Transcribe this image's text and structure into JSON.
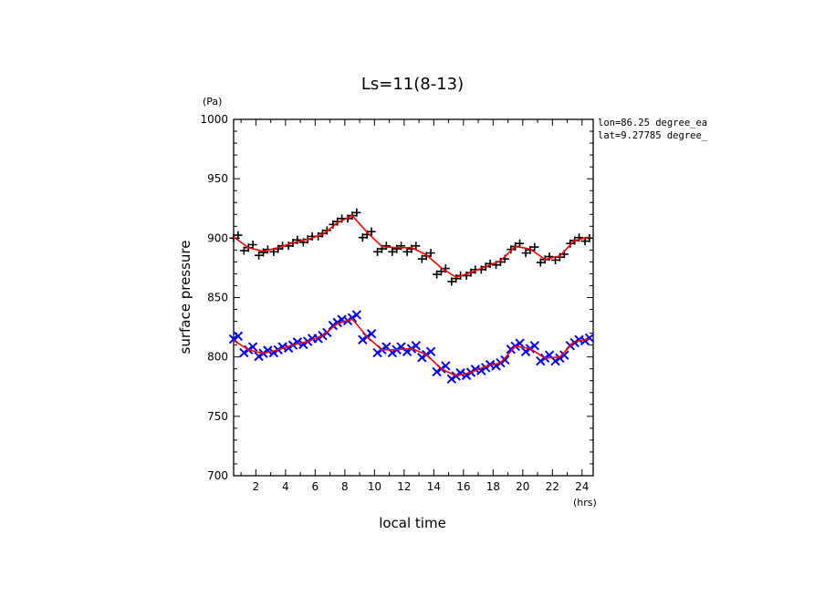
{
  "chart_data": {
    "type": "scatter",
    "title": "Ls=11(8-13)",
    "xlabel": "local time",
    "ylabel": "surface pressure",
    "x_unit": "(hrs)",
    "y_unit": "(Pa)",
    "xlim": [
      0.5,
      24.75
    ],
    "ylim": [
      700,
      1000
    ],
    "xticks": [
      2,
      4,
      6,
      8,
      10,
      12,
      14,
      16,
      18,
      20,
      22,
      24
    ],
    "yticks": [
      700,
      750,
      800,
      850,
      900,
      950,
      1000
    ],
    "annotations": [
      "lon=86.25 degree_ea",
      "lat=9.27785 degree_"
    ],
    "x": [
      0.5,
      1.5,
      2.5,
      3.5,
      4.5,
      5.5,
      6.5,
      7.5,
      8.5,
      9.5,
      10.5,
      11.5,
      12.5,
      13.5,
      14.5,
      15.5,
      16.5,
      17.5,
      18.5,
      19.5,
      20.5,
      21.5,
      22.5,
      23.5,
      24.5
    ],
    "series": [
      {
        "color": "#000000",
        "marker": "plus",
        "values": [
          900,
          892,
          888,
          891,
          896,
          899,
          904,
          914,
          919,
          903,
          891,
          891,
          891,
          885,
          872,
          866,
          871,
          876,
          880,
          893,
          890,
          882,
          884,
          898,
          900
        ],
        "fit": [
          901,
          892,
          889,
          892,
          896,
          899,
          903,
          913,
          919,
          905,
          893,
          892,
          892,
          886,
          875,
          867,
          871,
          876,
          881,
          893,
          891,
          882,
          885,
          898,
          901
        ]
      },
      {
        "color": "#0000ff",
        "marker": "x",
        "values": [
          815,
          806,
          803,
          806,
          810,
          813,
          818,
          829,
          833,
          817,
          806,
          806,
          807,
          802,
          790,
          784,
          787,
          791,
          795,
          809,
          807,
          799,
          799,
          812,
          816
        ],
        "fit": [
          814,
          806,
          803,
          806,
          810,
          813,
          818,
          828,
          832,
          817,
          806,
          806,
          807,
          802,
          790,
          784,
          787,
          792,
          795,
          809,
          807,
          799,
          800,
          813,
          815
        ]
      }
    ],
    "fit_color": "#ff0000"
  }
}
